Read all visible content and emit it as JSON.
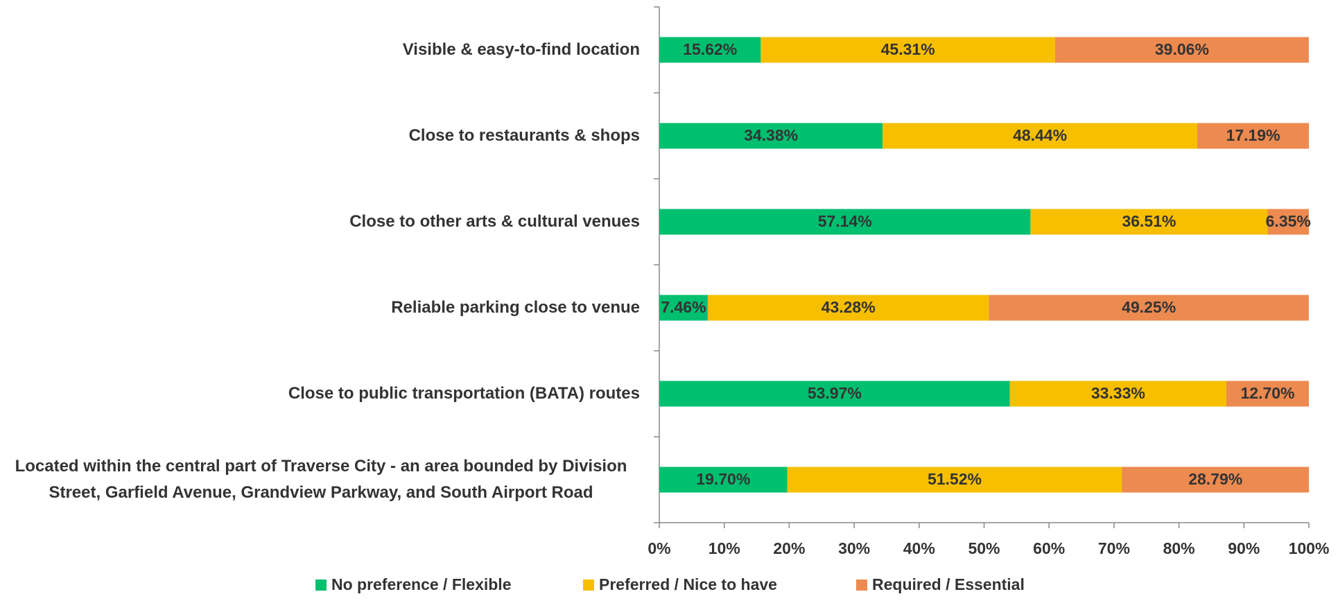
{
  "chart_data": {
    "type": "stacked_barh",
    "categories": [
      "Visible & easy-to-find location",
      "Close to restaurants & shops",
      "Close to other arts & cultural venues",
      "Reliable parking close to venue",
      "Close to public transportation (BATA) routes",
      "Located within the central part of Traverse City - an area bounded by Division Street, Garfield Avenue, Grandview Parkway, and South Airport Road"
    ],
    "series": [
      {
        "name": "No preference / Flexible",
        "color": "#00bf6f",
        "values": [
          15.62,
          34.38,
          57.14,
          7.46,
          53.97,
          19.7
        ],
        "value_labels": [
          "15.62%",
          "34.38%",
          "57.14%",
          "7.46%",
          "53.97%",
          "19.70%"
        ]
      },
      {
        "name": "Preferred / Nice to have",
        "color": "#f7bf00",
        "values": [
          45.31,
          48.44,
          36.51,
          43.28,
          33.33,
          51.52
        ],
        "value_labels": [
          "45.31%",
          "48.44%",
          "36.51%",
          "43.28%",
          "33.33%",
          "51.52%"
        ]
      },
      {
        "name": "Required / Essential",
        "color": "#ec8a50",
        "values": [
          39.06,
          17.19,
          6.35,
          49.25,
          12.7,
          28.79
        ],
        "value_labels": [
          "39.06%",
          "17.19%",
          "6.35%",
          "49.25%",
          "12.70%",
          "28.79%"
        ]
      }
    ],
    "xlim": [
      0,
      100
    ],
    "xticks": [
      {
        "value": 0,
        "label": "0%"
      },
      {
        "value": 10,
        "label": "10%"
      },
      {
        "value": 20,
        "label": "20%"
      },
      {
        "value": 30,
        "label": "30%"
      },
      {
        "value": 40,
        "label": "40%"
      },
      {
        "value": 50,
        "label": "50%"
      },
      {
        "value": 60,
        "label": "60%"
      },
      {
        "value": 70,
        "label": "70%"
      },
      {
        "value": 80,
        "label": "80%"
      },
      {
        "value": 90,
        "label": "90%"
      },
      {
        "value": 100,
        "label": "100%"
      }
    ],
    "legend": "bottom"
  }
}
